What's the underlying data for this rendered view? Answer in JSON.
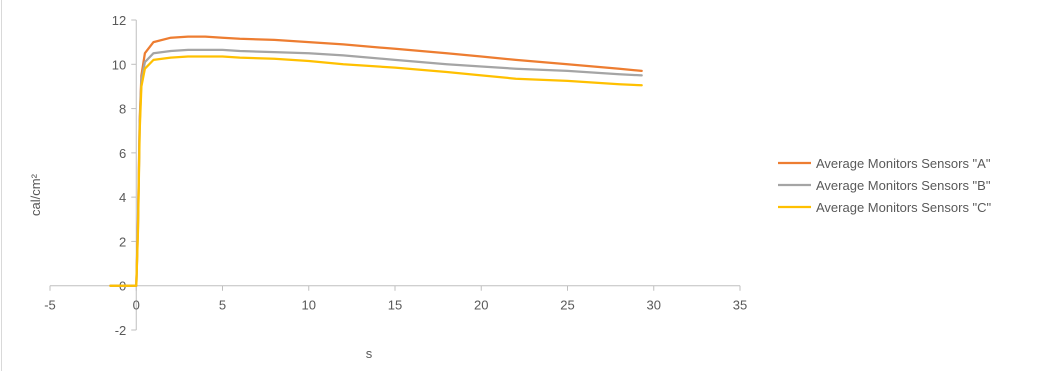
{
  "chart_data": {
    "type": "line",
    "title": "",
    "xlabel": "s",
    "ylabel": "cal/cm²",
    "xlim": [
      -5,
      35
    ],
    "ylim": [
      -2,
      12
    ],
    "x_ticks": [
      -5,
      0,
      5,
      10,
      15,
      20,
      25,
      30,
      35
    ],
    "y_ticks": [
      -2,
      0,
      2,
      4,
      6,
      8,
      10,
      12
    ],
    "grid": false,
    "legend_position": "right",
    "x": [
      -1.5,
      0,
      0.1,
      0.2,
      0.3,
      0.5,
      1,
      2,
      3,
      4,
      5,
      6,
      8,
      10,
      12,
      15,
      18,
      20,
      22,
      25,
      28,
      29.3
    ],
    "series": [
      {
        "name": "Average Monitors Sensors \"A\"",
        "color": "#ED7D31",
        "values": [
          0,
          0,
          3,
          7.5,
          9.5,
          10.5,
          11.0,
          11.2,
          11.25,
          11.25,
          11.2,
          11.15,
          11.1,
          11.0,
          10.9,
          10.7,
          10.5,
          10.35,
          10.2,
          10.0,
          9.8,
          9.7
        ]
      },
      {
        "name": "Average Monitors Sensors \"B\"",
        "color": "#A5A5A5",
        "values": [
          0,
          0,
          2.7,
          7.3,
          9.3,
          10.1,
          10.5,
          10.6,
          10.65,
          10.65,
          10.65,
          10.6,
          10.55,
          10.5,
          10.4,
          10.2,
          10.0,
          9.9,
          9.8,
          9.7,
          9.55,
          9.5
        ]
      },
      {
        "name": "Average Monitors Sensors \"C\"",
        "color": "#FFC000",
        "values": [
          0,
          0,
          2.5,
          7.0,
          9.0,
          9.8,
          10.2,
          10.3,
          10.35,
          10.35,
          10.35,
          10.3,
          10.25,
          10.15,
          10.0,
          9.85,
          9.65,
          9.5,
          9.35,
          9.25,
          9.1,
          9.05
        ]
      }
    ]
  }
}
